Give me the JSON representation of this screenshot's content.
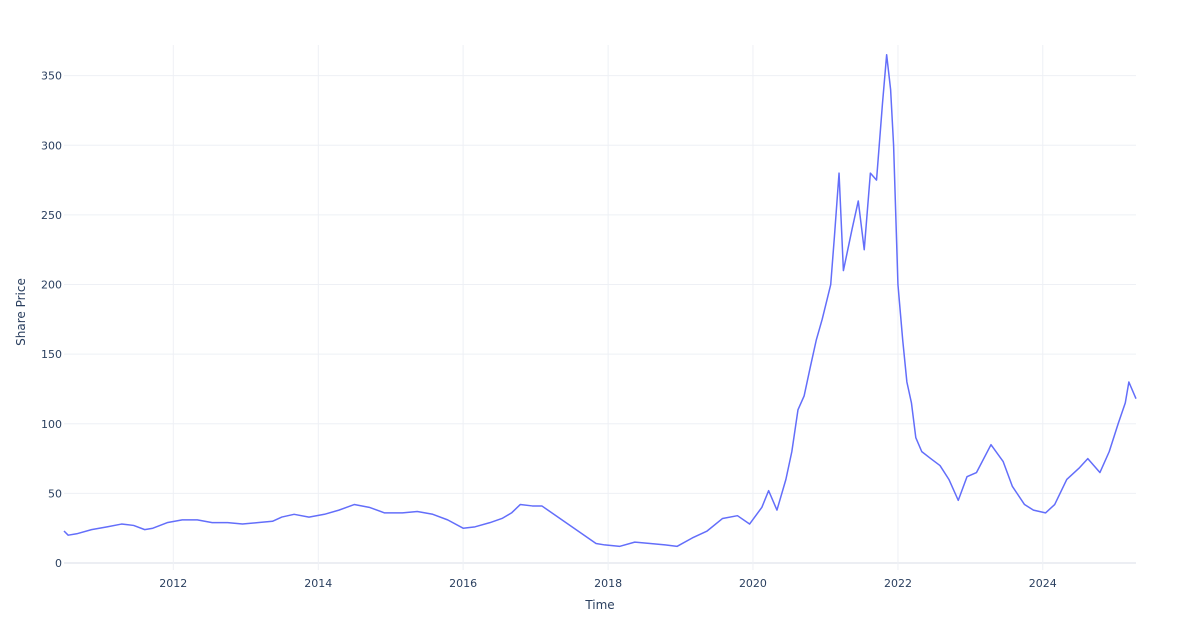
{
  "chart_data": {
    "type": "line",
    "title": "",
    "xlabel": "Time",
    "ylabel": "Share Price",
    "x_type": "date",
    "xlim": [
      "2010-06-29",
      "2025-04-15"
    ],
    "ylim": [
      -5,
      372
    ],
    "x_ticks": [
      {
        "value": "2012-01-01",
        "label": "2012"
      },
      {
        "value": "2014-01-01",
        "label": "2014"
      },
      {
        "value": "2016-01-01",
        "label": "2016"
      },
      {
        "value": "2018-01-01",
        "label": "2018"
      },
      {
        "value": "2020-01-01",
        "label": "2020"
      },
      {
        "value": "2022-01-01",
        "label": "2022"
      },
      {
        "value": "2024-01-01",
        "label": "2024"
      }
    ],
    "y_ticks": [
      0,
      50,
      100,
      150,
      200,
      250,
      300,
      350
    ],
    "grid": true,
    "legend": false,
    "line_color": "#636efa",
    "series": [
      {
        "x": [
          "2010-06-29",
          "2010-07-20",
          "2010-09-01",
          "2010-11-15",
          "2011-02-01",
          "2011-04-15",
          "2011-06-15",
          "2011-08-10",
          "2011-09-20",
          "2011-12-01",
          "2012-02-15",
          "2012-05-01",
          "2012-07-15",
          "2012-10-01",
          "2012-12-15",
          "2013-03-01",
          "2013-05-15",
          "2013-07-01",
          "2013-09-01",
          "2013-11-15",
          "2014-02-01",
          "2014-04-15",
          "2014-07-01",
          "2014-09-15",
          "2014-12-01",
          "2015-03-01",
          "2015-05-15",
          "2015-08-01",
          "2015-10-15",
          "2016-01-01",
          "2016-03-01",
          "2016-05-15",
          "2016-07-15",
          "2016-09-01",
          "2016-10-15",
          "2016-12-15",
          "2017-02-01",
          "2017-11-01",
          "2017-12-15",
          "2018-03-01",
          "2018-05-15",
          "2018-08-01",
          "2018-10-15",
          "2018-12-15",
          "2019-03-01",
          "2019-05-15",
          "2019-08-01",
          "2019-10-15",
          "2019-12-15",
          "2020-02-15",
          "2020-03-20",
          "2020-05-01",
          "2020-06-15",
          "2020-07-15",
          "2020-08-15",
          "2020-09-15",
          "2020-10-15",
          "2020-11-15",
          "2020-12-15",
          "2021-01-10",
          "2021-01-27",
          "2021-02-15",
          "2021-03-10",
          "2021-04-01",
          "2021-05-15",
          "2021-06-15",
          "2021-07-15",
          "2021-08-15",
          "2021-09-15",
          "2021-10-15",
          "2021-11-05",
          "2021-11-25",
          "2021-12-10",
          "2022-01-01",
          "2022-01-25",
          "2022-02-15",
          "2022-03-10",
          "2022-04-01",
          "2022-05-01",
          "2022-06-15",
          "2022-08-01",
          "2022-09-15",
          "2022-11-01",
          "2022-12-15",
          "2023-02-01",
          "2023-04-15",
          "2023-06-15",
          "2023-08-01",
          "2023-10-01",
          "2023-11-15",
          "2024-01-15",
          "2024-03-01",
          "2024-05-01",
          "2024-07-01",
          "2024-08-15",
          "2024-10-15",
          "2024-12-01",
          "2025-01-15",
          "2025-02-20",
          "2025-03-10",
          "2025-04-15"
        ],
        "y": [
          23,
          20,
          21,
          24,
          26,
          28,
          27,
          24,
          25,
          29,
          31,
          31,
          29,
          29,
          28,
          29,
          30,
          33,
          35,
          33,
          35,
          38,
          42,
          40,
          36,
          36,
          37,
          35,
          31,
          25,
          26,
          29,
          32,
          36,
          42,
          41,
          41,
          14,
          13,
          12,
          15,
          14,
          13,
          12,
          18,
          23,
          32,
          34,
          28,
          40,
          52,
          38,
          60,
          80,
          110,
          120,
          140,
          160,
          175,
          190,
          200,
          235,
          280,
          210,
          240,
          260,
          225,
          280,
          275,
          330,
          365,
          340,
          300,
          200,
          160,
          130,
          115,
          90,
          80,
          75,
          70,
          60,
          45,
          62,
          65,
          85,
          73,
          55,
          42,
          38,
          36,
          42,
          60,
          68,
          75,
          65,
          80,
          100,
          115,
          130,
          118
        ]
      }
    ]
  }
}
